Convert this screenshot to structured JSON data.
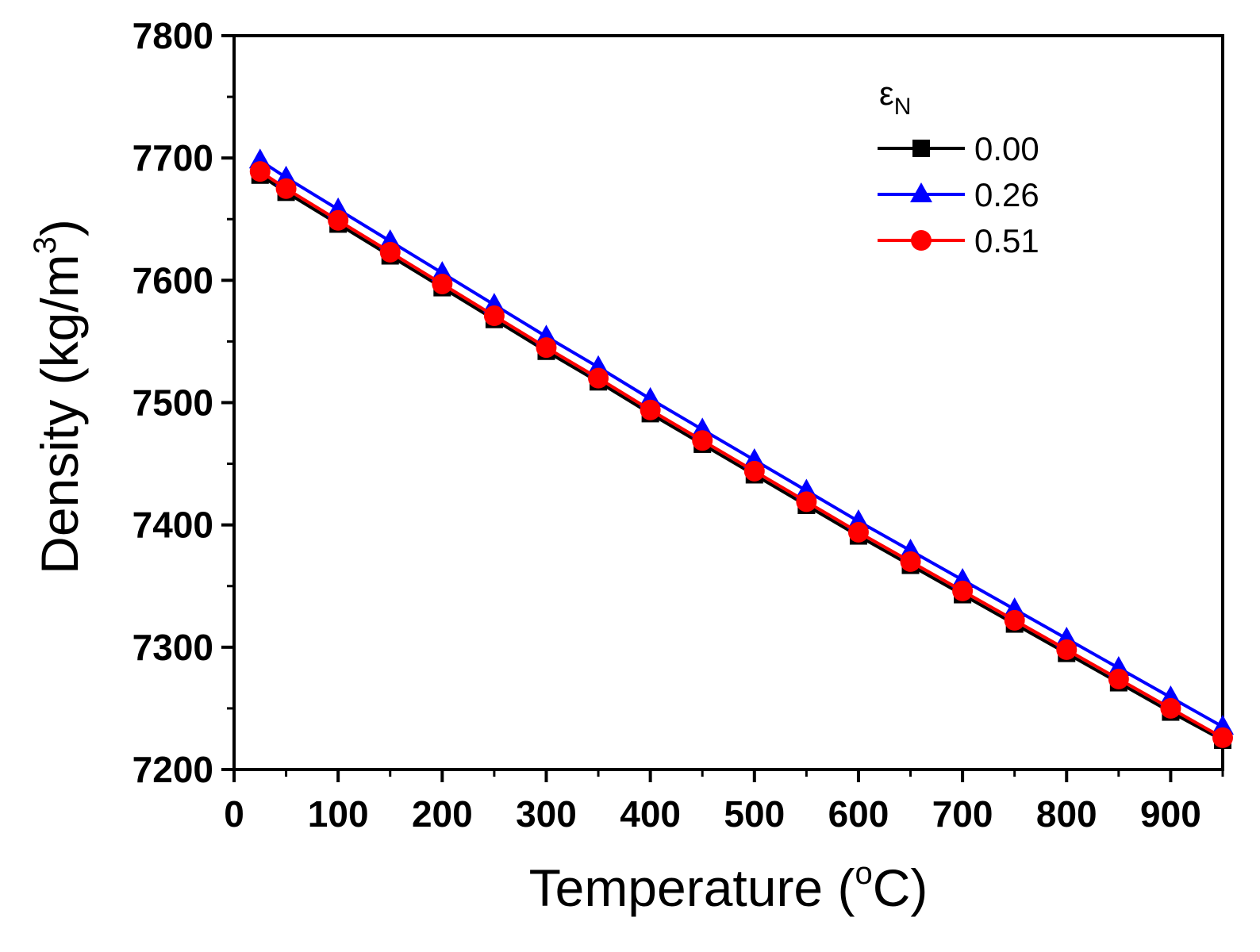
{
  "chart_data": {
    "type": "line",
    "title": "",
    "xlabel": "Temperature",
    "xlabel_unit": "(oC)",
    "xlabel_unit_open": "(",
    "xlabel_unit_sup": "o",
    "xlabel_unit_close": "C)",
    "ylabel": "Density",
    "ylabel_unit": "(kg/m3)",
    "ylabel_unit_open": "(kg/m",
    "ylabel_unit_sup": "3",
    "ylabel_unit_close": ")",
    "xlim": [
      0,
      950
    ],
    "ylim": [
      7200,
      7800
    ],
    "xticks": [
      "0",
      "100",
      "200",
      "300",
      "400",
      "500",
      "600",
      "700",
      "800",
      "900"
    ],
    "yticks": [
      "7200",
      "7300",
      "7400",
      "7500",
      "7600",
      "7700",
      "7800"
    ],
    "x": [
      25,
      50,
      100,
      150,
      200,
      250,
      300,
      350,
      400,
      450,
      500,
      550,
      600,
      650,
      700,
      750,
      800,
      850,
      900,
      950
    ],
    "legend_title": "εN",
    "legend_title_main": "ε",
    "legend_title_sub": "N",
    "legend_position": "top-right",
    "series": [
      {
        "name": "0.00",
        "color": "#000000",
        "marker": "square",
        "values": [
          7686,
          7672,
          7646,
          7620,
          7594,
          7568,
          7542,
          7517,
          7491,
          7466,
          7441,
          7416,
          7391,
          7367,
          7343,
          7319,
          7295,
          7271,
          7247,
          7224
        ]
      },
      {
        "name": "0.26",
        "color": "#0000ff",
        "marker": "triangle",
        "values": [
          7698,
          7684,
          7658,
          7632,
          7606,
          7580,
          7554,
          7529,
          7503,
          7478,
          7453,
          7428,
          7403,
          7379,
          7355,
          7331,
          7307,
          7283,
          7259,
          7235
        ]
      },
      {
        "name": "0.51",
        "color": "#ff0000",
        "marker": "circle",
        "values": [
          7689,
          7675,
          7649,
          7623,
          7597,
          7571,
          7545,
          7520,
          7494,
          7469,
          7444,
          7419,
          7394,
          7370,
          7346,
          7322,
          7298,
          7274,
          7250,
          7226
        ]
      }
    ]
  }
}
